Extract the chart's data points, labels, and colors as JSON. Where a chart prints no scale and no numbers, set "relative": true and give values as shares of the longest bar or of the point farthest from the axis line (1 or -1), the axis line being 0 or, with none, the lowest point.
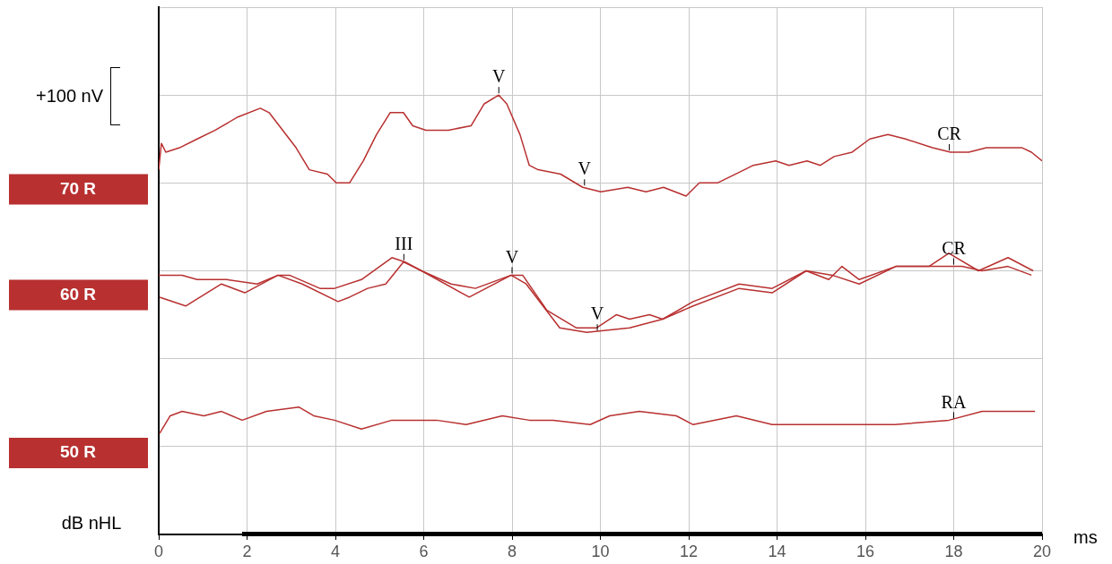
{
  "chart_data": {
    "type": "line",
    "relative": true,
    "xlabel": "ms",
    "ylabel": "dB nHL",
    "xlim": [
      0,
      20
    ],
    "xticks": [
      0,
      2,
      4,
      6,
      8,
      10,
      12,
      14,
      16,
      18,
      20
    ],
    "grid": true,
    "legend": false,
    "marker": "none",
    "line_style": "solid",
    "annotations": [
      "+100 nV",
      {
        "text": "V",
        "x": 7.7,
        "y": 1.0
      },
      {
        "text": "V",
        "x": 9.64,
        "y": 0.79
      },
      {
        "text": "CR",
        "x": 17.9,
        "y": 0.87
      },
      {
        "text": "III",
        "x": 5.55,
        "y": 0.62
      },
      {
        "text": "V",
        "x": 8.0,
        "y": 0.59
      },
      {
        "text": "V",
        "x": 9.93,
        "y": 0.46
      },
      {
        "text": "CR",
        "x": 18.0,
        "y": 0.61
      },
      {
        "text": "RA",
        "x": 18.0,
        "y": 0.26
      }
    ],
    "series": [
      {
        "name": "70 R",
        "color": "#b83030",
        "x": [
          0,
          0.06,
          0.16,
          0.47,
          0.87,
          1.28,
          1.79,
          2.3,
          2.5,
          3.11,
          3.41,
          3.82,
          4.02,
          4.32,
          4.63,
          4.93,
          5.24,
          5.54,
          5.75,
          6.05,
          6.56,
          7.07,
          7.37,
          7.7,
          7.88,
          8.18,
          8.39,
          8.59,
          9.1,
          9.6,
          10.01,
          10.62,
          11.03,
          11.43,
          11.94,
          12.24,
          12.65,
          13.26,
          13.46,
          13.97,
          14.27,
          14.68,
          14.98,
          15.29,
          15.7,
          16.1,
          16.51,
          16.91,
          17.52,
          17.93,
          18.34,
          18.74,
          19.15,
          19.55,
          19.76,
          20.0
        ],
        "values": [
          0.83,
          0.89,
          0.87,
          0.88,
          0.9,
          0.92,
          0.95,
          0.97,
          0.96,
          0.88,
          0.83,
          0.82,
          0.8,
          0.8,
          0.85,
          0.91,
          0.96,
          0.96,
          0.93,
          0.92,
          0.92,
          0.93,
          0.98,
          1.0,
          0.98,
          0.91,
          0.84,
          0.83,
          0.82,
          0.79,
          0.78,
          0.79,
          0.78,
          0.79,
          0.77,
          0.8,
          0.8,
          0.83,
          0.84,
          0.85,
          0.84,
          0.85,
          0.84,
          0.86,
          0.87,
          0.9,
          0.91,
          0.9,
          0.88,
          0.87,
          0.87,
          0.88,
          0.88,
          0.88,
          0.87,
          0.85
        ]
      },
      {
        "name": "60 R",
        "color": "#b83030",
        "x": [
          0,
          0.53,
          0.87,
          1.54,
          2.23,
          2.7,
          2.96,
          3.65,
          3.98,
          4.59,
          5.28,
          5.58,
          5.95,
          6.62,
          7.17,
          7.98,
          8.24,
          8.79,
          9.46,
          9.91,
          10.36,
          10.66,
          11.11,
          11.41,
          12.1,
          13.14,
          13.89,
          14.66,
          15.17,
          15.47,
          15.86,
          16.69,
          17.44,
          17.89,
          18.56,
          19.23,
          19.8
        ],
        "values": [
          0.59,
          0.59,
          0.58,
          0.58,
          0.57,
          0.59,
          0.59,
          0.56,
          0.56,
          0.58,
          0.63,
          0.62,
          0.6,
          0.57,
          0.56,
          0.59,
          0.59,
          0.51,
          0.47,
          0.47,
          0.5,
          0.49,
          0.5,
          0.49,
          0.53,
          0.57,
          0.56,
          0.6,
          0.58,
          0.61,
          0.58,
          0.61,
          0.61,
          0.64,
          0.6,
          0.63,
          0.6
        ]
      },
      {
        "color": "#b83030",
        "x": [
          0.02,
          0.61,
          1.42,
          1.95,
          2.7,
          3.25,
          4.06,
          4.32,
          4.73,
          5.14,
          5.54,
          5.95,
          7.03,
          7.98,
          8.32,
          9.08,
          9.69,
          10.66,
          11.41,
          12.1,
          13.14,
          13.89,
          14.66,
          15.25,
          15.86,
          16.69,
          17.44,
          18.19,
          18.64,
          19.23,
          19.76
        ],
        "values": [
          0.54,
          0.52,
          0.57,
          0.55,
          0.59,
          0.57,
          0.53,
          0.54,
          0.56,
          0.57,
          0.62,
          0.6,
          0.54,
          0.59,
          0.57,
          0.47,
          0.46,
          0.47,
          0.49,
          0.52,
          0.56,
          0.55,
          0.6,
          0.59,
          0.57,
          0.61,
          0.61,
          0.61,
          0.6,
          0.61,
          0.59
        ]
      },
      {
        "name": "50 R",
        "color": "#b83030",
        "x": [
          0.02,
          0.26,
          0.53,
          1.02,
          1.42,
          1.89,
          2.44,
          3.17,
          3.51,
          3.98,
          4.59,
          5.28,
          6.29,
          6.96,
          7.78,
          8.39,
          8.93,
          9.77,
          10.21,
          10.88,
          11.72,
          12.1,
          13.08,
          13.89,
          14.8,
          15.92,
          16.67,
          17.89,
          18.64,
          19.23,
          19.76,
          19.84
        ],
        "values": [
          0.23,
          0.27,
          0.28,
          0.27,
          0.28,
          0.26,
          0.28,
          0.29,
          0.27,
          0.26,
          0.24,
          0.26,
          0.26,
          0.25,
          0.27,
          0.26,
          0.26,
          0.25,
          0.27,
          0.28,
          0.27,
          0.25,
          0.27,
          0.25,
          0.25,
          0.25,
          0.25,
          0.26,
          0.28,
          0.28,
          0.28,
          0.28
        ]
      }
    ]
  }
}
